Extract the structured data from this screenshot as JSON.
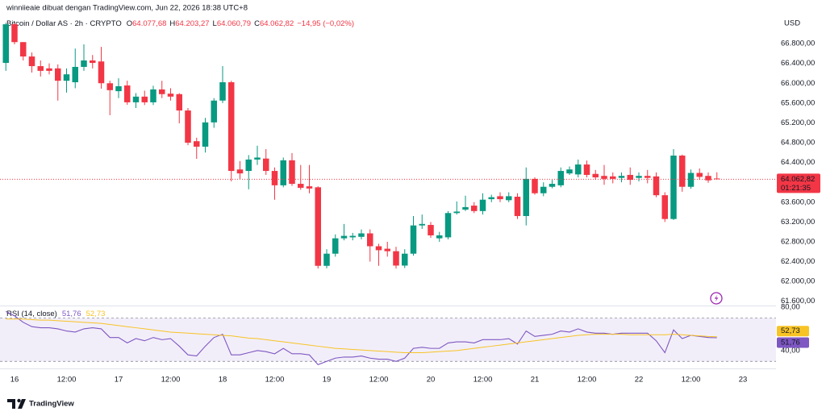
{
  "watermark": "winniieaie dibuat dengan TradingView.com, Jun 22, 2026 18:38 UTC+8",
  "brand": "TradingView",
  "chart_data": [
    {
      "type": "candlestick",
      "title": "Bitcoin / Dollar AS · 2h · CRYPTO",
      "ohlc_labels": [
        {
          "key": "O",
          "value": "64.077,68"
        },
        {
          "key": "H",
          "value": "64.203,27"
        },
        {
          "key": "L",
          "value": "64.060,79"
        },
        {
          "key": "C",
          "value": "64.062,82"
        }
      ],
      "change": "−14,95 (−0,02%)",
      "currency": "USD",
      "last_price_label": "64.062,82",
      "countdown": "01:21:35",
      "up_color": "#089981",
      "down_color": "#f23645",
      "categories": [
        null,
        "16",
        null,
        null,
        null,
        null,
        null,
        "12:00",
        null,
        null,
        null,
        null,
        null,
        "17",
        null,
        null,
        null,
        null,
        null,
        "12:00",
        null,
        null,
        null,
        null,
        null,
        "18",
        null,
        null,
        null,
        null,
        null,
        "12:00",
        null,
        null,
        null,
        null,
        null,
        "19",
        null,
        null,
        null,
        null,
        null,
        "12:00",
        null,
        null,
        null,
        null,
        null,
        "20",
        null,
        null,
        null,
        null,
        null,
        "12:00",
        null,
        null,
        null,
        null,
        null,
        "21",
        null,
        null,
        null,
        null,
        null,
        "12:00",
        null,
        null,
        null,
        null,
        null,
        "22",
        null,
        null,
        null,
        null,
        null,
        "12:00",
        null,
        null,
        null,
        null,
        null,
        "23"
      ],
      "open": [
        66410,
        67190,
        66830,
        66540,
        66345,
        66300,
        66300,
        66050,
        66020,
        66330,
        66460,
        66440,
        66000,
        65840,
        65955,
        65615,
        65730,
        65615,
        65875,
        65790,
        65780,
        65450,
        64830,
        64720,
        65210,
        65650,
        66020,
        64260,
        64230,
        64460,
        64480,
        64230,
        63940,
        64445,
        63970,
        63920,
        63900,
        62315,
        62560,
        62870,
        62890,
        62900,
        62970,
        62710,
        62660,
        62610,
        62320,
        62560,
        63130,
        63140,
        62870,
        62890,
        63380,
        63450,
        63530,
        63420,
        63660,
        63720,
        63640,
        63710,
        63320,
        64070,
        63780,
        63910,
        63940,
        64180,
        64160,
        64360,
        64170,
        64130,
        64120,
        64090,
        64150,
        64090,
        64130,
        64120,
        63740,
        63260,
        64540,
        63910,
        64190,
        64130,
        64077.68,
        null,
        null,
        null
      ],
      "high": [
        67220,
        67220,
        66830,
        66620,
        66460,
        66400,
        66380,
        66300,
        66700,
        66785,
        66570,
        66735,
        66052,
        66100,
        66052,
        65800,
        65850,
        65950,
        66050,
        65900,
        65800,
        65500,
        64900,
        65300,
        65700,
        66345,
        66050,
        64430,
        64550,
        64740,
        64670,
        64300,
        64500,
        64590,
        64350,
        64350,
        63920,
        62650,
        62950,
        63160,
        62980,
        63050,
        63050,
        62760,
        62800,
        62700,
        62650,
        63320,
        63350,
        63200,
        63000,
        63420,
        63615,
        63730,
        63600,
        63780,
        63750,
        63800,
        63800,
        63780,
        64300,
        64100,
        64000,
        64050,
        64300,
        64320,
        64460,
        64440,
        64250,
        64350,
        64200,
        64200,
        64300,
        64200,
        64250,
        64200,
        63800,
        64670,
        64560,
        64260,
        64280,
        64200,
        64203.27,
        null,
        null,
        null
      ],
      "low": [
        66250,
        66785,
        66460,
        66215,
        66135,
        66180,
        65650,
        65810,
        65900,
        66250,
        66300,
        65890,
        65355,
        65700,
        65565,
        65500,
        65560,
        65560,
        65700,
        65650,
        65190,
        64750,
        64475,
        64600,
        65100,
        65600,
        64020,
        64070,
        63860,
        64350,
        64150,
        63650,
        63900,
        63930,
        63850,
        63780,
        62260,
        62265,
        62500,
        62830,
        62830,
        62850,
        62400,
        62315,
        62500,
        62260,
        62270,
        62520,
        63060,
        62880,
        62800,
        62850,
        63350,
        63420,
        63380,
        63350,
        63600,
        63600,
        63600,
        63260,
        63130,
        63750,
        63720,
        63880,
        63900,
        64150,
        64100,
        64100,
        64050,
        63950,
        63980,
        64000,
        63950,
        64020,
        63980,
        63700,
        63200,
        63240,
        63810,
        63870,
        64050,
        63990,
        64060.79,
        null,
        null,
        null
      ],
      "close": [
        67190,
        66830,
        66540,
        66345,
        66250,
        66250,
        66050,
        66180,
        66330,
        66460,
        66410,
        66000,
        65860,
        65940,
        65615,
        65730,
        65615,
        65875,
        65780,
        65730,
        65450,
        64800,
        64720,
        65210,
        65650,
        66020,
        64230,
        64180,
        64460,
        64500,
        64230,
        63940,
        64445,
        63970,
        63890,
        63875,
        62315,
        62560,
        62870,
        62920,
        62920,
        62970,
        62710,
        62630,
        62610,
        62320,
        62560,
        63130,
        63160,
        62930,
        62930,
        63380,
        63410,
        63500,
        63420,
        63650,
        63700,
        63660,
        63720,
        63320,
        64070,
        63780,
        63910,
        63970,
        64230,
        64260,
        64360,
        64150,
        64100,
        64070,
        64070,
        64130,
        64050,
        64130,
        64090,
        63740,
        63260,
        64540,
        63910,
        64190,
        64110,
        64040,
        64062.82,
        null,
        null,
        null
      ],
      "ylim": [
        61530,
        67680
      ],
      "yticks": [
        {
          "value": 66800,
          "label": "66.800,00"
        },
        {
          "value": 66400,
          "label": "66.400,00"
        },
        {
          "value": 66000,
          "label": "66.000,00"
        },
        {
          "value": 65600,
          "label": "65.600,00"
        },
        {
          "value": 65200,
          "label": "65.200,00"
        },
        {
          "value": 64800,
          "label": "64.800,00"
        },
        {
          "value": 64400,
          "label": "64.400,00"
        },
        {
          "value": 63600,
          "label": "63.600,00"
        },
        {
          "value": 63200,
          "label": "63.200,00"
        },
        {
          "value": 62800,
          "label": "62.800,00"
        },
        {
          "value": 62400,
          "label": "62.400,00"
        },
        {
          "value": 62000,
          "label": "62.000,00"
        },
        {
          "value": 61600,
          "label": "61.600,00"
        }
      ]
    },
    {
      "type": "line",
      "title": "RSI (14, close)",
      "band": [
        30,
        70
      ],
      "band_color": "#7e57c2",
      "series": [
        {
          "color": "#7e57c2",
          "last_label": "51,76",
          "values": [
            76,
            72,
            66,
            62,
            61,
            61,
            60,
            58,
            57,
            60,
            61,
            60,
            52,
            52,
            47,
            51,
            49,
            52,
            50,
            51,
            44,
            36,
            35,
            44,
            52,
            55,
            36,
            36,
            38,
            40,
            39,
            37,
            42,
            37,
            37,
            36,
            27,
            30,
            33,
            34,
            34,
            35,
            33,
            32,
            32,
            30,
            33,
            42,
            43,
            42,
            42,
            47,
            48,
            48,
            47,
            50,
            50,
            50,
            51,
            46,
            58,
            53,
            54,
            55,
            58,
            57,
            60,
            57,
            56,
            56,
            55,
            56,
            56,
            56,
            56,
            49,
            38,
            59,
            51,
            54,
            53,
            52,
            51.76,
            null,
            null,
            null
          ]
        },
        {
          "color": "#f7c325",
          "last_label": "52,73",
          "values": [
            69,
            69,
            69,
            68.5,
            68,
            68,
            67.5,
            67,
            66.5,
            66,
            65.5,
            65,
            64,
            63,
            62,
            61,
            60,
            59,
            58,
            57,
            56.5,
            56,
            55.5,
            55,
            54.5,
            54,
            53.5,
            52.5,
            51.5,
            51,
            50,
            49,
            48,
            47,
            46,
            45,
            44,
            43,
            42,
            41.5,
            41,
            40.5,
            40,
            39.5,
            39,
            38.5,
            38,
            38,
            38,
            38.5,
            39,
            39.5,
            40,
            41,
            42,
            43,
            44,
            45,
            46,
            47,
            48,
            49,
            50,
            51,
            52,
            53,
            54,
            54.5,
            55,
            55,
            55,
            55,
            54.5,
            54.5,
            54.5,
            54.5,
            54.5,
            55,
            54.5,
            54,
            53.5,
            53,
            52.73,
            null,
            null,
            null
          ]
        }
      ],
      "ylim": [
        25,
        80
      ],
      "yticks": [
        {
          "value": 80,
          "label": "80,00"
        },
        {
          "value": 40,
          "label": "40,00"
        }
      ]
    }
  ]
}
